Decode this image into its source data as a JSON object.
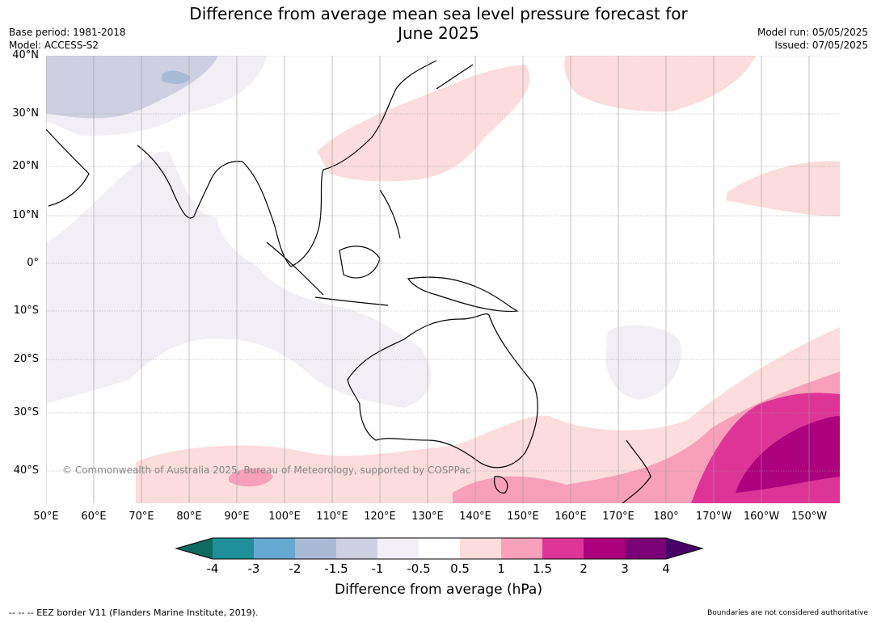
{
  "header": {
    "title_line1": "Difference from average mean sea level pressure forecast for",
    "title_line2": "June 2025",
    "base_period": "Base period: 1981-2018",
    "model": "Model: ACCESS-S2",
    "model_run": "Model run: 05/05/2025",
    "issued": "Issued: 07/05/2025"
  },
  "map": {
    "lat_labels": [
      "40°N",
      "30°N",
      "20°N",
      "10°N",
      "0°",
      "10°S",
      "20°S",
      "30°S",
      "40°S"
    ],
    "lon_labels": [
      "50°E",
      "60°E",
      "70°E",
      "80°E",
      "90°E",
      "100°E",
      "110°E",
      "120°E",
      "130°E",
      "140°E",
      "150°E",
      "160°E",
      "170°E",
      "180°",
      "170°W",
      "160°W",
      "150°W"
    ],
    "copyright": "© Commonwealth of Australia 2025, Bureau of Meteorology, supported by COSPPac",
    "colors": {
      "land_outline": "#000000",
      "border": "#888888",
      "grid": "#9a9a9a",
      "neg_1": "#f1eff5",
      "neg_15": "#cfcfe2",
      "neg_2": "#a9bad6",
      "pos_05": "#fcdcdc",
      "pos_1": "#f79fbb",
      "pos_15": "#de3497",
      "pos_2": "#ad017e",
      "pos_3": "#7a0177"
    }
  },
  "colorbar": {
    "labels": [
      "-4",
      "-3",
      "-2",
      "-1.5",
      "-1",
      "-0.5",
      "0.5",
      "1",
      "1.5",
      "2",
      "3",
      "4"
    ],
    "colors": [
      "#0f6b5f",
      "#1f8f9a",
      "#66a8d0",
      "#a9bad6",
      "#cfcfe2",
      "#f1eff5",
      "#ffffff",
      "#fcdcdc",
      "#f79fbb",
      "#de3497",
      "#ad017e",
      "#7a0177",
      "#4a0069"
    ],
    "title": "Difference from average (hPa)"
  },
  "footer": {
    "eez": "--  --  -- EEZ border V11 (Flanders Marine Institute, 2019).",
    "boundaries": "Boundaries are not considered authoritative"
  }
}
